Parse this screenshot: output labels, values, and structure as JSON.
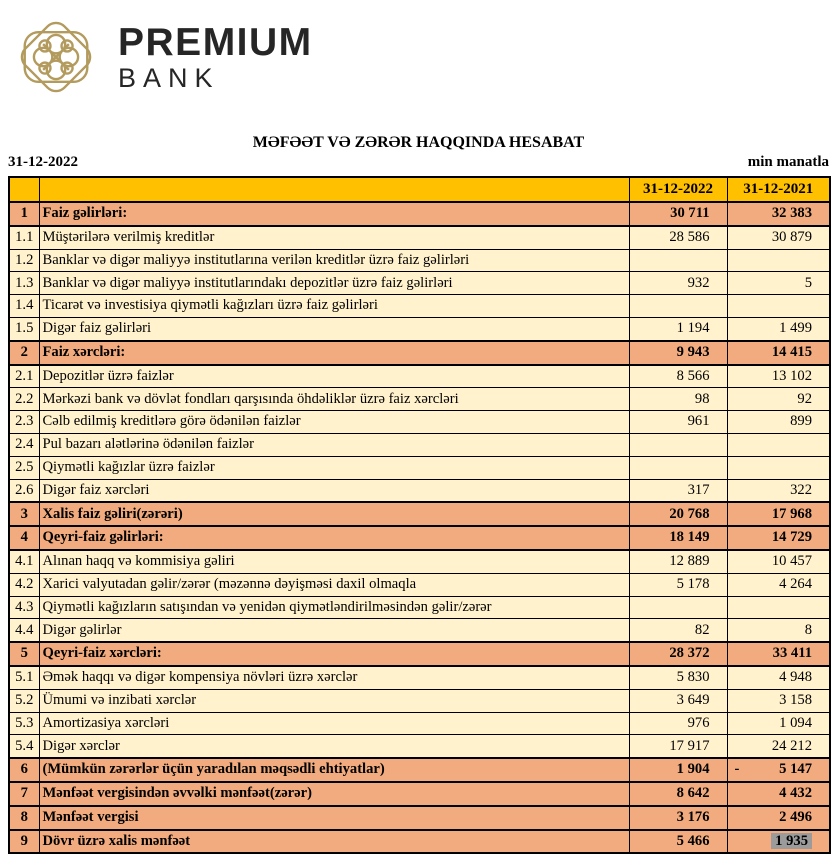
{
  "logo": {
    "brand": "PREMIUM",
    "sub": "BANK",
    "gold": "#B39A5D",
    "text_color": "#262626"
  },
  "title": "MƏFƏƏT VƏ ZƏRƏR HAQQINDA HESABAT",
  "report_date": "31-12-2022",
  "unit_label": "min manatla",
  "colors": {
    "header_bg": "#FFC000",
    "section_bg": "#F2AB7E",
    "detail_bg": "#FFF2CC",
    "highlight_bg": "#9B9B9B",
    "border": "#000000"
  },
  "table": {
    "col_2022": "31-12-2022",
    "col_2021": "31-12-2021",
    "rows": [
      {
        "no": "1",
        "label": "Faiz gəlirləri:",
        "v2022": "30 711",
        "v2021": "32 383",
        "section": true
      },
      {
        "no": "1.1",
        "label": "Müştərilərə verilmiş kreditlər",
        "v2022": "28 586",
        "v2021": "30 879"
      },
      {
        "no": "1.2",
        "label": "Banklar və digər maliyyə institutlarına verilən kreditlər üzrə faiz gəlirləri",
        "v2022": "",
        "v2021": ""
      },
      {
        "no": "1.3",
        "label": "Banklar və digər maliyyə institutlarındakı depozitlər üzrə faiz gəlirləri",
        "v2022": "932",
        "v2021": "5"
      },
      {
        "no": "1.4",
        "label": "Ticarət və investisiya qiymətli kağızları üzrə faiz gəlirləri",
        "v2022": "",
        "v2021": ""
      },
      {
        "no": "1.5",
        "label": "Digər faiz gəlirləri",
        "v2022": "1 194",
        "v2021": "1 499"
      },
      {
        "no": "2",
        "label": "Faiz xərcləri:",
        "v2022": "9 943",
        "v2021": "14 415",
        "section": true
      },
      {
        "no": "2.1",
        "label": "Depozitlər üzrə faizlər",
        "v2022": "8 566",
        "v2021": "13 102"
      },
      {
        "no": "2.2",
        "label": "Mərkəzi bank və dövlət fondları qarşısında öhdəliklər üzrə faiz xərcləri",
        "v2022": "98",
        "v2021": "92"
      },
      {
        "no": "2.3",
        "label": "Cəlb edilmiş kreditlərə görə ödənilən faizlər",
        "v2022": "961",
        "v2021": "899"
      },
      {
        "no": "2.4",
        "label": "Pul bazarı alətlərinə ödənilən faizlər",
        "v2022": "",
        "v2021": ""
      },
      {
        "no": "2.5",
        "label": "Qiymətli kağızlar üzrə faizlər",
        "v2022": "",
        "v2021": ""
      },
      {
        "no": "2.6",
        "label": "Digər faiz xərcləri",
        "v2022": "317",
        "v2021": "322"
      },
      {
        "no": "3",
        "label": "Xalis faiz gəliri(zərəri)",
        "v2022": "20 768",
        "v2021": "17 968",
        "section": true
      },
      {
        "no": "4",
        "label": "Qeyri-faiz gəlirləri:",
        "v2022": "18 149",
        "v2021": "14 729",
        "section": true
      },
      {
        "no": "4.1",
        "label": "Alınan haqq və kommisiya gəliri",
        "v2022": "12 889",
        "v2021": "10 457"
      },
      {
        "no": "4.2",
        "label": "Xarici valyutadan gəlir/zərər (məzənnə dəyişməsi daxil olmaqla",
        "v2022": "5 178",
        "v2021": "4 264"
      },
      {
        "no": "4.3",
        "label": "Qiymətli kağızların satışından və yenidən qiymətləndirilməsindən gəlir/zərər",
        "v2022": "",
        "v2021": ""
      },
      {
        "no": "4.4",
        "label": "Digər gəlirlər",
        "v2022": "82",
        "v2021": "8"
      },
      {
        "no": "5",
        "label": "Qeyri-faiz xərcləri:",
        "v2022": "28 372",
        "v2021": "33 411",
        "section": true
      },
      {
        "no": "5.1",
        "label": "Əmək haqqı və digər kompensiya növləri üzrə xərclər",
        "v2022": "5 830",
        "v2021": "4 948"
      },
      {
        "no": "5.2",
        "label": "Ümumi və inzibati xərclər",
        "v2022": "3 649",
        "v2021": "3 158"
      },
      {
        "no": "5.3",
        "label": "Amortizasiya xərcləri",
        "v2022": "976",
        "v2021": "1 094"
      },
      {
        "no": "5.4",
        "label": "Digər xərclər",
        "v2022": "17 917",
        "v2021": "24 212"
      },
      {
        "no": "6",
        "label": "(Mümkün zərərlər üçün yaradılan məqsədli ehtiyatlar)",
        "v2022": "1 904",
        "v2021": "5 147",
        "neg2021": true,
        "section": true
      },
      {
        "no": "7",
        "label": "Mənfəət vergisindən əvvəlki mənfəət(zərər)",
        "v2022": "8 642",
        "v2021": "4 432",
        "section": true
      },
      {
        "no": "8",
        "label": "Mənfəət vergisi",
        "v2022": "3 176",
        "v2021": "2 496",
        "section": true
      },
      {
        "no": "9",
        "label": "Dövr üzrə xalis mənfəət",
        "v2022": "5 466",
        "v2021": "1 935",
        "highlight2021": true,
        "section": true
      }
    ]
  }
}
